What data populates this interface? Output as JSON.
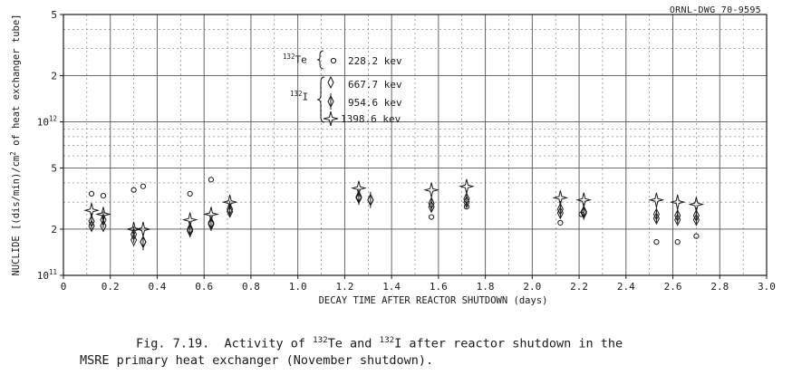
{
  "drawing_number": "ORNL-DWG 70-9595",
  "caption": {
    "fig": "Fig. 7.19.",
    "line1_a": "Activity of ",
    "te_mass": "132",
    "line1_b": "Te and ",
    "i_mass": "132",
    "line1_c": "I after reactor shutdown in the",
    "line2": "MSRE primary heat exchanger (November shutdown)."
  },
  "legend": {
    "te_mass": "132",
    "te_symbol": "Te",
    "i_mass": "132",
    "i_symbol": "I",
    "entries": [
      {
        "nuclide": "132Te",
        "marker": "circle",
        "label": "228.2 kev"
      },
      {
        "nuclide": "132I",
        "marker": "diamond",
        "label": "667.7 kev"
      },
      {
        "nuclide": "132I",
        "marker": "diamond-bar",
        "label": "954.6 kev"
      },
      {
        "nuclide": "132I",
        "marker": "star",
        "label": "1398.6 kev"
      }
    ]
  },
  "chart_data": {
    "type": "scatter",
    "title": "",
    "xlabel": "DECAY TIME AFTER REACTOR SHUTDOWN (days)",
    "ylabel_a": "NUCLIDE [(dis/min)/cm",
    "ylabel_sup": "2",
    "ylabel_b": " of heat exchanger tube]",
    "xlim": [
      0,
      3.0
    ],
    "ylim": [
      100000000000.0,
      5000000000000.0
    ],
    "yscale": "log",
    "x_ticks": [
      "0",
      "0.2",
      "0.4",
      "0.6",
      "0.8",
      "1.0",
      "1.2",
      "1.4",
      "1.6",
      "1.8",
      "2.0",
      "2.2",
      "2.4",
      "2.6",
      "2.8",
      "3.0"
    ],
    "y_ticks": [
      {
        "value": 100000000000.0,
        "base": "10",
        "exp": "11"
      },
      {
        "value": 200000000000.0,
        "base": "2",
        "exp": ""
      },
      {
        "value": 500000000000.0,
        "base": "5",
        "exp": ""
      },
      {
        "value": 1000000000000.0,
        "base": "10",
        "exp": "12"
      },
      {
        "value": 2000000000000.0,
        "base": "2",
        "exp": ""
      },
      {
        "value": 5000000000000.0,
        "base": "5",
        "exp": ""
      }
    ],
    "grid": true,
    "series": [
      {
        "name": "228.2 kev",
        "marker": "circle",
        "points": [
          [
            0.12,
            340000000000.0
          ],
          [
            0.17,
            330000000000.0
          ],
          [
            0.3,
            360000000000.0
          ],
          [
            0.34,
            380000000000.0
          ],
          [
            0.54,
            340000000000.0
          ],
          [
            0.63,
            420000000000.0
          ],
          [
            1.26,
            320000000000.0
          ],
          [
            1.57,
            240000000000.0
          ],
          [
            1.72,
            280000000000.0
          ],
          [
            2.12,
            220000000000.0
          ],
          [
            2.21,
            250000000000.0
          ],
          [
            2.53,
            165000000000.0
          ],
          [
            2.62,
            165000000000.0
          ],
          [
            2.7,
            180000000000.0
          ]
        ]
      },
      {
        "name": "667.7 kev",
        "marker": "diamond",
        "points": [
          [
            0.12,
            210000000000.0
          ],
          [
            0.17,
            210000000000.0
          ],
          [
            0.3,
            170000000000.0
          ],
          [
            0.34,
            165000000000.0
          ],
          [
            0.54,
            195000000000.0
          ],
          [
            0.63,
            215000000000.0
          ],
          [
            0.71,
            260000000000.0
          ],
          [
            1.26,
            320000000000.0
          ],
          [
            1.31,
            310000000000.0
          ],
          [
            1.57,
            280000000000.0
          ],
          [
            1.72,
            300000000000.0
          ],
          [
            2.12,
            255000000000.0
          ],
          [
            2.22,
            255000000000.0
          ],
          [
            2.53,
            235000000000.0
          ],
          [
            2.62,
            230000000000.0
          ],
          [
            2.7,
            230000000000.0
          ]
        ]
      },
      {
        "name": "954.6 kev",
        "marker": "diamond-bar",
        "points": [
          [
            0.12,
            225000000000.0
          ],
          [
            0.17,
            230000000000.0
          ],
          [
            0.3,
            185000000000.0
          ],
          [
            0.34,
            165000000000.0
          ],
          [
            0.54,
            200000000000.0
          ],
          [
            0.63,
            220000000000.0
          ],
          [
            0.71,
            270000000000.0
          ],
          [
            1.26,
            325000000000.0
          ],
          [
            1.31,
            310000000000.0
          ],
          [
            1.57,
            295000000000.0
          ],
          [
            1.72,
            315000000000.0
          ],
          [
            2.12,
            270000000000.0
          ],
          [
            2.22,
            260000000000.0
          ],
          [
            2.53,
            250000000000.0
          ],
          [
            2.62,
            245000000000.0
          ],
          [
            2.7,
            245000000000.0
          ]
        ]
      },
      {
        "name": "1398.6 kev",
        "marker": "star",
        "points": [
          [
            0.12,
            265000000000.0
          ],
          [
            0.17,
            250000000000.0
          ],
          [
            0.3,
            200000000000.0
          ],
          [
            0.34,
            200000000000.0
          ],
          [
            0.54,
            230000000000.0
          ],
          [
            0.63,
            250000000000.0
          ],
          [
            0.71,
            300000000000.0
          ],
          [
            1.26,
            370000000000.0
          ],
          [
            1.57,
            360000000000.0
          ],
          [
            1.72,
            380000000000.0
          ],
          [
            2.12,
            320000000000.0
          ],
          [
            2.22,
            310000000000.0
          ],
          [
            2.53,
            310000000000.0
          ],
          [
            2.62,
            300000000000.0
          ],
          [
            2.7,
            290000000000.0
          ]
        ]
      }
    ]
  }
}
